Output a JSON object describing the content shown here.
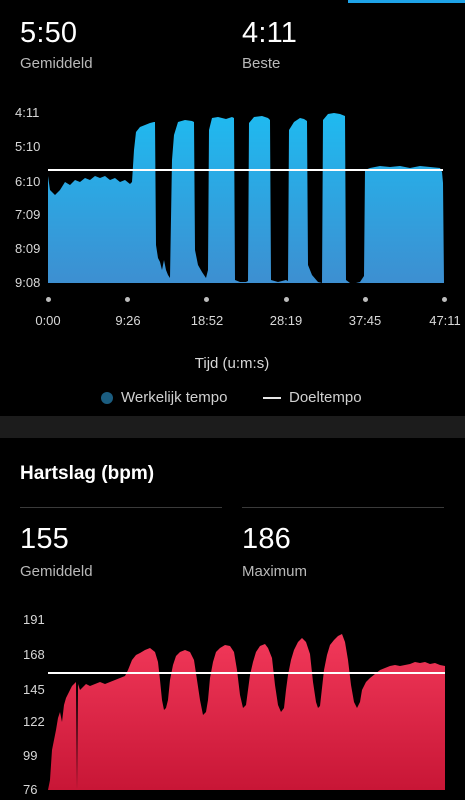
{
  "pace": {
    "average_value": "5:50",
    "average_label": "Gemiddeld",
    "best_value": "4:11",
    "best_label": "Beste",
    "y_ticks": [
      "4:11",
      "5:10",
      "6:10",
      "7:09",
      "8:09",
      "9:08"
    ],
    "x_ticks": [
      "0:00",
      "9:26",
      "18:52",
      "28:19",
      "37:45",
      "47:11"
    ],
    "x_axis_title": "Tijd (u:m:s)",
    "legend_actual": "Werkelijk tempo",
    "legend_target": "Doeltempo",
    "colors": {
      "fill_top": "#1fbaf0",
      "fill_bottom": "#3d8fd1",
      "target_line": "#ffffff",
      "legend_dot": "#1b5d80"
    }
  },
  "heart_rate": {
    "section_title": "Hartslag (bpm)",
    "average_value": "155",
    "average_label": "Gemiddeld",
    "max_value": "186",
    "max_label": "Maximum",
    "y_ticks": [
      "191",
      "168",
      "145",
      "122",
      "99",
      "76"
    ],
    "colors": {
      "fill_top": "#f2395a",
      "fill_bottom": "#c81636",
      "target_line": "#ffffff"
    }
  },
  "chart_data": [
    {
      "type": "area",
      "series": [
        {
          "name": "Werkelijk tempo",
          "x_minutes": [
            0,
            1,
            3,
            5,
            7,
            9,
            9.5,
            10.5,
            11,
            11.5,
            12,
            13,
            13.5,
            14,
            15,
            15.5,
            16,
            17,
            17.5,
            19,
            20,
            21,
            22,
            23,
            24,
            25,
            26,
            27,
            28,
            29,
            30,
            31,
            32,
            33,
            34,
            35,
            36,
            37,
            38,
            40,
            42,
            44,
            46,
            47
          ],
          "y_pace": [
            "6:40",
            "6:20",
            "6:25",
            "6:15",
            "6:20",
            "6:20",
            "6:10",
            "4:30",
            "4:25",
            "9:00",
            "8:30",
            "9:00",
            "4:25",
            "4:20",
            "4:25",
            "8:50",
            "9:00",
            "4:20",
            "4:15",
            "4:20",
            "9:00",
            "9:00",
            "4:20",
            "4:15",
            "4:20",
            "9:00",
            "9:00",
            "4:20",
            "4:15",
            "4:20",
            "9:00",
            "9:00",
            "4:20",
            "4:15",
            "4:20",
            "9:00",
            "9:00",
            "9:00",
            "6:00",
            "5:55",
            "6:00",
            "5:55",
            "6:00",
            "6:10"
          ]
        }
      ],
      "target_pace": "6:00",
      "y_ticks": [
        "4:11",
        "5:10",
        "6:10",
        "7:09",
        "8:09",
        "9:08"
      ],
      "x_ticks": [
        "0:00",
        "9:26",
        "18:52",
        "28:19",
        "37:45",
        "47:11"
      ],
      "xlabel": "Tijd (u:m:s)"
    },
    {
      "type": "area",
      "series": [
        {
          "x_minutes": [
            0,
            1,
            2,
            3,
            4,
            5,
            7,
            9,
            11,
            13,
            14,
            15,
            16,
            17,
            18,
            19,
            20,
            21,
            22,
            23,
            24,
            25,
            26,
            27,
            28,
            29,
            30,
            31,
            32,
            33,
            34,
            35,
            36,
            38,
            40,
            42,
            44,
            46,
            47
          ],
          "y_bpm": [
            80,
            130,
            135,
            140,
            145,
            148,
            150,
            152,
            155,
            172,
            173,
            145,
            130,
            170,
            174,
            145,
            130,
            170,
            176,
            145,
            130,
            170,
            177,
            145,
            132,
            172,
            180,
            145,
            132,
            175,
            182,
            140,
            140,
            155,
            160,
            161,
            162,
            162,
            161
          ]
        }
      ],
      "target_bpm": 158,
      "y_ticks": [
        191,
        168,
        145,
        122,
        99,
        76
      ]
    }
  ]
}
